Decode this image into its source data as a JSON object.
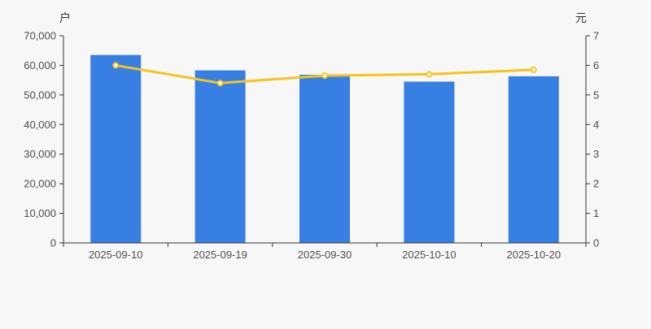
{
  "chart_data": {
    "type": "bar+line",
    "title": "",
    "categories": [
      "2025-09-10",
      "2025-09-19",
      "2025-09-30",
      "2025-10-10",
      "2025-10-20"
    ],
    "series": [
      {
        "type": "bar",
        "axis": "left",
        "values": [
          63500,
          58300,
          56800,
          54500,
          56300
        ],
        "color": "#377fe3"
      },
      {
        "type": "line",
        "axis": "right",
        "values": [
          6.0,
          5.4,
          5.65,
          5.7,
          5.85
        ],
        "color": "#f6c31a",
        "marker_fill": "#ffffff"
      }
    ],
    "left_axis": {
      "unit": "户",
      "min": 0,
      "max": 70000,
      "step": 10000,
      "tick_labels": [
        "0",
        "10,000",
        "20,000",
        "30,000",
        "40,000",
        "50,000",
        "60,000",
        "70,000"
      ]
    },
    "right_axis": {
      "unit": "元",
      "min": 0,
      "max": 7,
      "step": 1,
      "tick_labels": [
        "0",
        "1",
        "2",
        "3",
        "4",
        "5",
        "6",
        "7"
      ]
    },
    "grid": false,
    "legend": null,
    "background": "#f7f7f7",
    "axis_color": "#333333",
    "label_color": "#4d4d4d"
  }
}
